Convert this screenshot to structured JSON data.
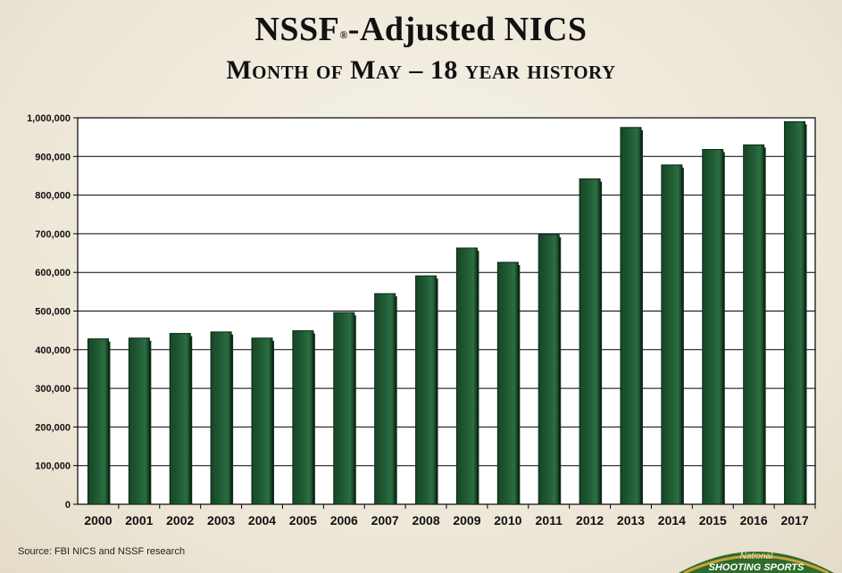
{
  "header": {
    "title_main": "NSSF",
    "title_reg": "®",
    "title_rest": "-Adjusted NICS",
    "subtitle": "Month of May – 18 year history"
  },
  "chart_data": {
    "type": "bar",
    "categories": [
      "2000",
      "2001",
      "2002",
      "2003",
      "2004",
      "2005",
      "2006",
      "2007",
      "2008",
      "2009",
      "2010",
      "2011",
      "2012",
      "2013",
      "2014",
      "2015",
      "2016",
      "2017"
    ],
    "values": [
      428000,
      430000,
      442000,
      446000,
      430000,
      449000,
      496000,
      545000,
      591000,
      663000,
      626000,
      698000,
      842000,
      975000,
      878000,
      918000,
      930000,
      990000
    ],
    "ylim": [
      0,
      1000000
    ],
    "yticks": [
      0,
      100000,
      200000,
      300000,
      400000,
      500000,
      600000,
      700000,
      800000,
      900000,
      1000000
    ],
    "ytick_labels": [
      "0",
      "100,000",
      "200,000",
      "300,000",
      "400,000",
      "500,000",
      "600,000",
      "700,000",
      "800,000",
      "900,000",
      "1,000,000"
    ],
    "grid": true,
    "bar_color": "#1f5a33",
    "bar_edge": "#0b2414"
  },
  "footer": {
    "source": "Source: FBI NICS and NSSF research",
    "logo_line1": "National",
    "logo_line2": "SHOOTING SPORTS"
  },
  "colors": {
    "logo_green": "#2f6b2a",
    "logo_gold": "#c9a13a"
  }
}
